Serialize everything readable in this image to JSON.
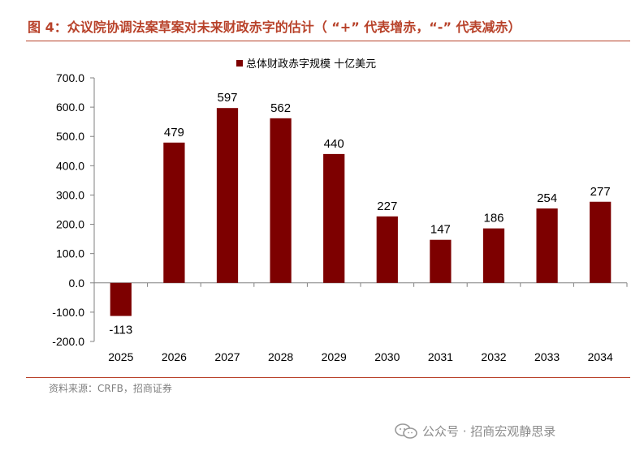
{
  "header": {
    "figure_title": "图 4：众议院协调法案草案对未来财政赤字的估计（ “+” 代表增赤，“-” 代表减赤）"
  },
  "footer": {
    "source": "资料来源：CRFB，招商证券",
    "watermark": "公众号 · 招商宏观静思录"
  },
  "colors": {
    "bar": "#7d0000",
    "title": "#b8422a",
    "axis": "#808080"
  },
  "chart_data": {
    "type": "bar",
    "title": "",
    "xlabel": "",
    "ylabel": "",
    "ylim": [
      -200,
      700
    ],
    "ytick_step": 100,
    "ytick_labels": [
      "-200.0",
      "-100.0",
      "0.0",
      "100.0",
      "200.0",
      "300.0",
      "400.0",
      "500.0",
      "600.0",
      "700.0"
    ],
    "categories": [
      "2025",
      "2026",
      "2027",
      "2028",
      "2029",
      "2030",
      "2031",
      "2032",
      "2033",
      "2034"
    ],
    "series": [
      {
        "name": "总体财政赤字规模 十亿美元",
        "values": [
          -113,
          479,
          597,
          562,
          440,
          227,
          147,
          186,
          254,
          277
        ],
        "labels": [
          "-113",
          "479",
          "597",
          "562",
          "440",
          "227",
          "147",
          "186",
          "254",
          "277"
        ]
      }
    ],
    "legend_position": "top-center",
    "grid": false
  }
}
